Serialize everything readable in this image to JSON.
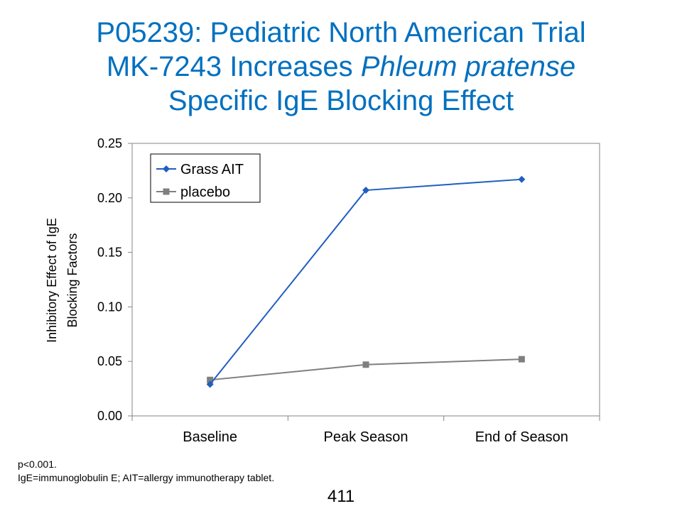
{
  "title": {
    "line1": "P05239: Pediatric North American Trial",
    "line2_prefix": "MK-7243 Increases ",
    "line2_italic": "Phleum pratense",
    "line3": "Specific IgE Blocking Effect"
  },
  "chart_data": {
    "type": "line",
    "categories": [
      "Baseline",
      "Peak Season",
      "End of Season"
    ],
    "series": [
      {
        "name": "Grass AIT",
        "values": [
          0.029,
          0.207,
          0.217
        ],
        "color": "#1f5fbf",
        "marker": "diamond"
      },
      {
        "name": "placebo",
        "values": [
          0.033,
          0.047,
          0.052
        ],
        "color": "#7f7f7f",
        "marker": "square"
      }
    ],
    "ylabel_line1": "Inhibitory Effect of IgE",
    "ylabel_line2": "Blocking Factors",
    "ylim": [
      0,
      0.25
    ],
    "yticks": [
      "0.00",
      "0.05",
      "0.10",
      "0.15",
      "0.20",
      "0.25"
    ],
    "grid": false,
    "legend_position": "top-left"
  },
  "footnote": {
    "line1": "p<0.001.",
    "line2": "IgE=immunoglobulin E; AIT=allergy immunotherapy tablet."
  },
  "page_number": "411"
}
